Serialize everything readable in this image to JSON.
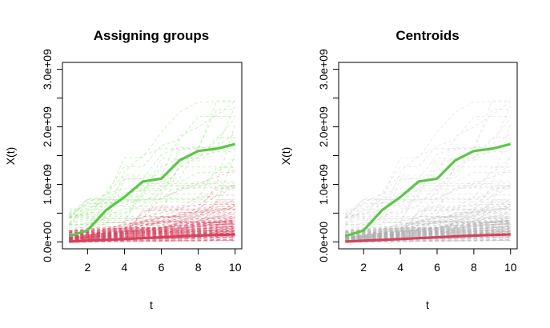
{
  "chart_data": [
    {
      "type": "line",
      "title": "Assigning groups",
      "xlabel": "t",
      "ylabel": "X(t)",
      "x": [
        1,
        2,
        3,
        4,
        5,
        6,
        7,
        8,
        9,
        10
      ],
      "xticks": [
        2,
        4,
        6,
        8,
        10
      ],
      "xtick_labels": [
        "2",
        "4",
        "6",
        "8",
        "10"
      ],
      "yticks": [
        0,
        500000000,
        1000000000,
        1500000000,
        2000000000,
        2500000000,
        3000000000
      ],
      "ytick_labels": [
        "0.0e+00",
        "",
        "1.0e+09",
        "",
        "2.0e+09",
        "",
        "3.0e+09"
      ],
      "xlim": [
        0.64,
        10.36
      ],
      "ylim": [
        -120000000,
        3120000000
      ],
      "background_trajectories": "many dashed individual trajectories colored by assigned group (light green for high group, red for low group)",
      "series": [
        {
          "values": [
            100000000,
            200000000,
            550000000,
            780000000,
            1050000000,
            1100000000,
            1420000000,
            1580000000,
            1620000000,
            1700000000
          ],
          "color": "#5cc648"
        },
        {
          "values": [
            5000000,
            20000000,
            35000000,
            50000000,
            65000000,
            80000000,
            95000000,
            110000000,
            120000000,
            130000000
          ],
          "color": "#d5425f"
        }
      ]
    },
    {
      "type": "line",
      "title": "Centroids",
      "xlabel": "t",
      "ylabel": "X(t)",
      "x": [
        1,
        2,
        3,
        4,
        5,
        6,
        7,
        8,
        9,
        10
      ],
      "xticks": [
        2,
        4,
        6,
        8,
        10
      ],
      "xtick_labels": [
        "2",
        "4",
        "6",
        "8",
        "10"
      ],
      "yticks": [
        0,
        500000000,
        1000000000,
        1500000000,
        2000000000,
        2500000000,
        3000000000
      ],
      "ytick_labels": [
        "0.0e+00",
        "",
        "1.0e+09",
        "",
        "2.0e+09",
        "",
        "3.0e+09"
      ],
      "xlim": [
        0.64,
        10.36
      ],
      "ylim": [
        -120000000,
        3120000000
      ],
      "background_trajectories": "many dashed individual trajectories in light gray",
      "series": [
        {
          "values": [
            100000000,
            200000000,
            550000000,
            780000000,
            1050000000,
            1100000000,
            1420000000,
            1580000000,
            1620000000,
            1700000000
          ],
          "color": "#5cc648"
        },
        {
          "values": [
            5000000,
            20000000,
            35000000,
            50000000,
            65000000,
            80000000,
            95000000,
            110000000,
            120000000,
            130000000
          ],
          "color": "#d5425f"
        }
      ]
    }
  ]
}
